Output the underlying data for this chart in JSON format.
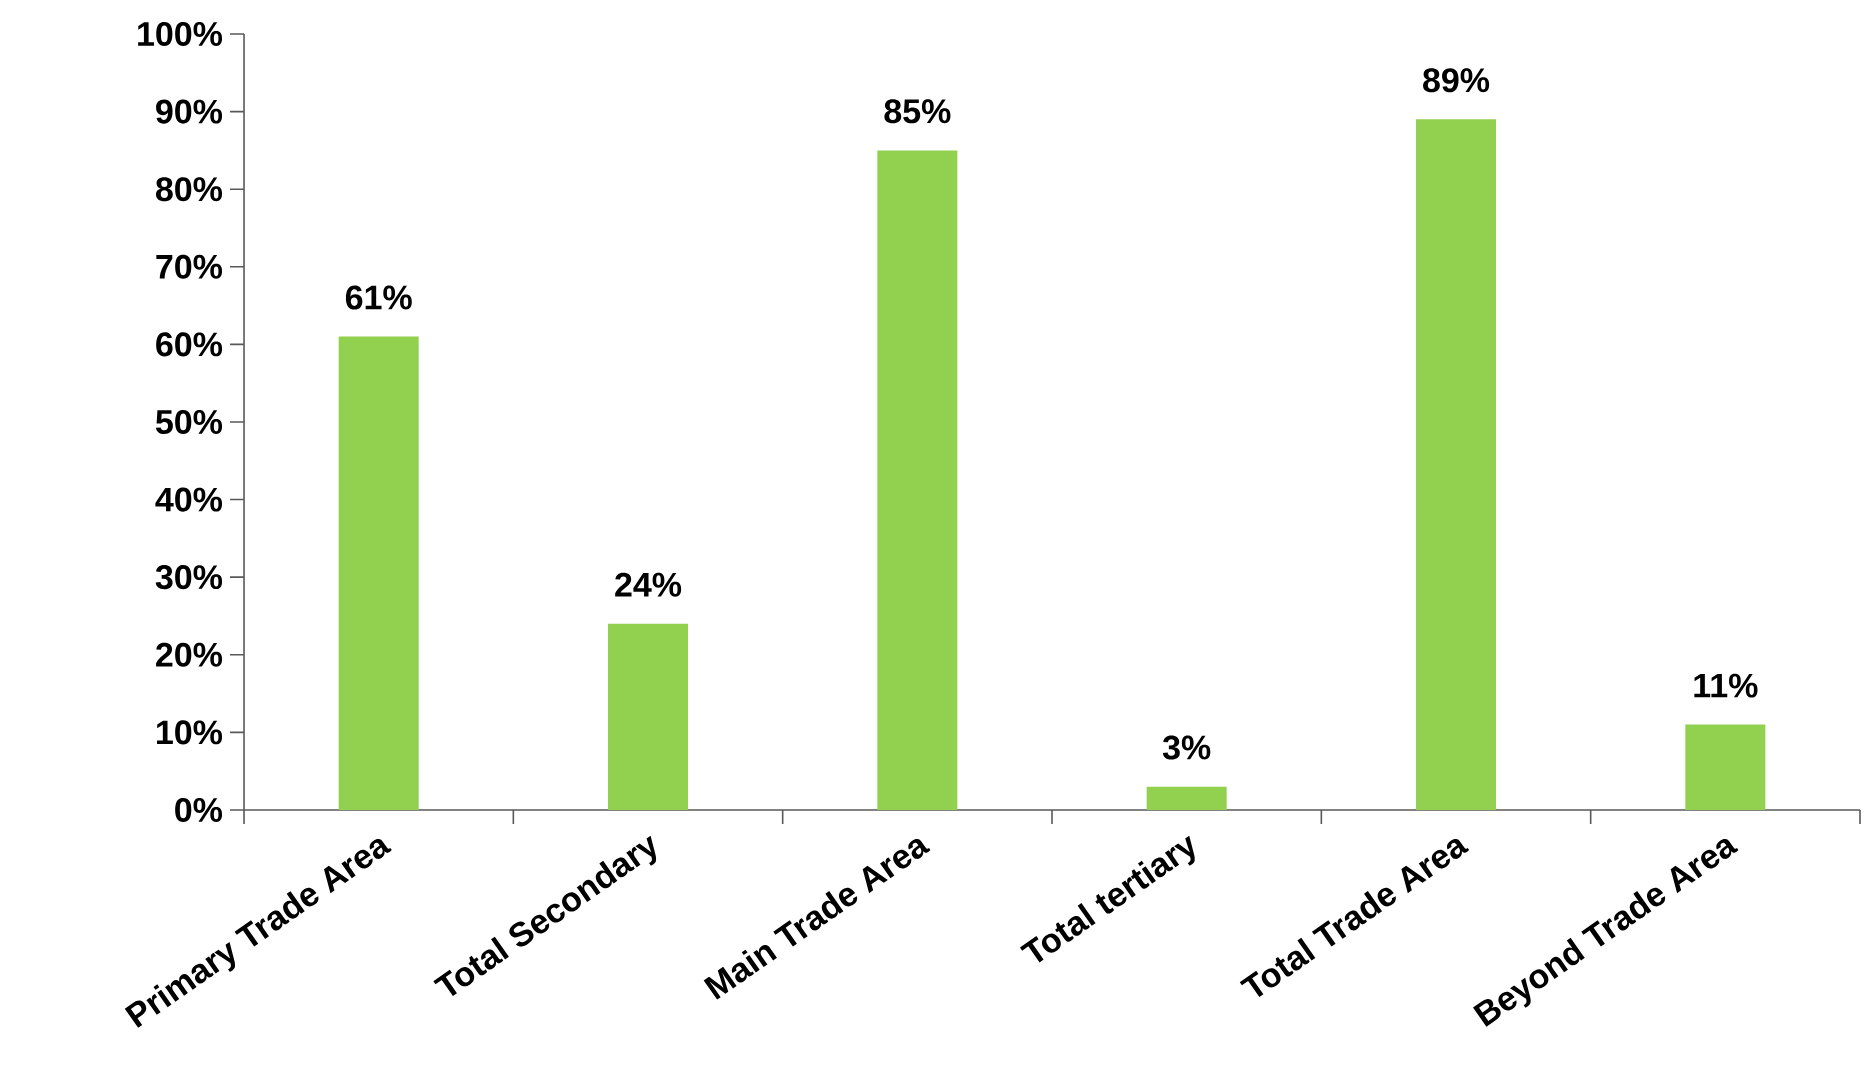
{
  "chart_data": {
    "type": "bar",
    "categories": [
      "Primary Trade Area",
      "Total Secondary",
      "Main Trade Area",
      "Total tertiary",
      "Total Trade Area",
      "Beyond Trade Area"
    ],
    "values": [
      61,
      24,
      85,
      3,
      89,
      11
    ],
    "value_labels": [
      "61%",
      "24%",
      "85%",
      "3%",
      "89%",
      "11%"
    ],
    "color": "#92d050",
    "ylim": [
      0,
      100
    ],
    "yticks": [
      {
        "value": 0,
        "label": "0%"
      },
      {
        "value": 10,
        "label": "10%"
      },
      {
        "value": 20,
        "label": "20%"
      },
      {
        "value": 30,
        "label": "30%"
      },
      {
        "value": 40,
        "label": "40%"
      },
      {
        "value": 50,
        "label": "50%"
      },
      {
        "value": 60,
        "label": "60%"
      },
      {
        "value": 70,
        "label": "70%"
      },
      {
        "value": 80,
        "label": "80%"
      },
      {
        "value": 90,
        "label": "90%"
      },
      {
        "value": 100,
        "label": "100%"
      }
    ],
    "grid": false
  }
}
